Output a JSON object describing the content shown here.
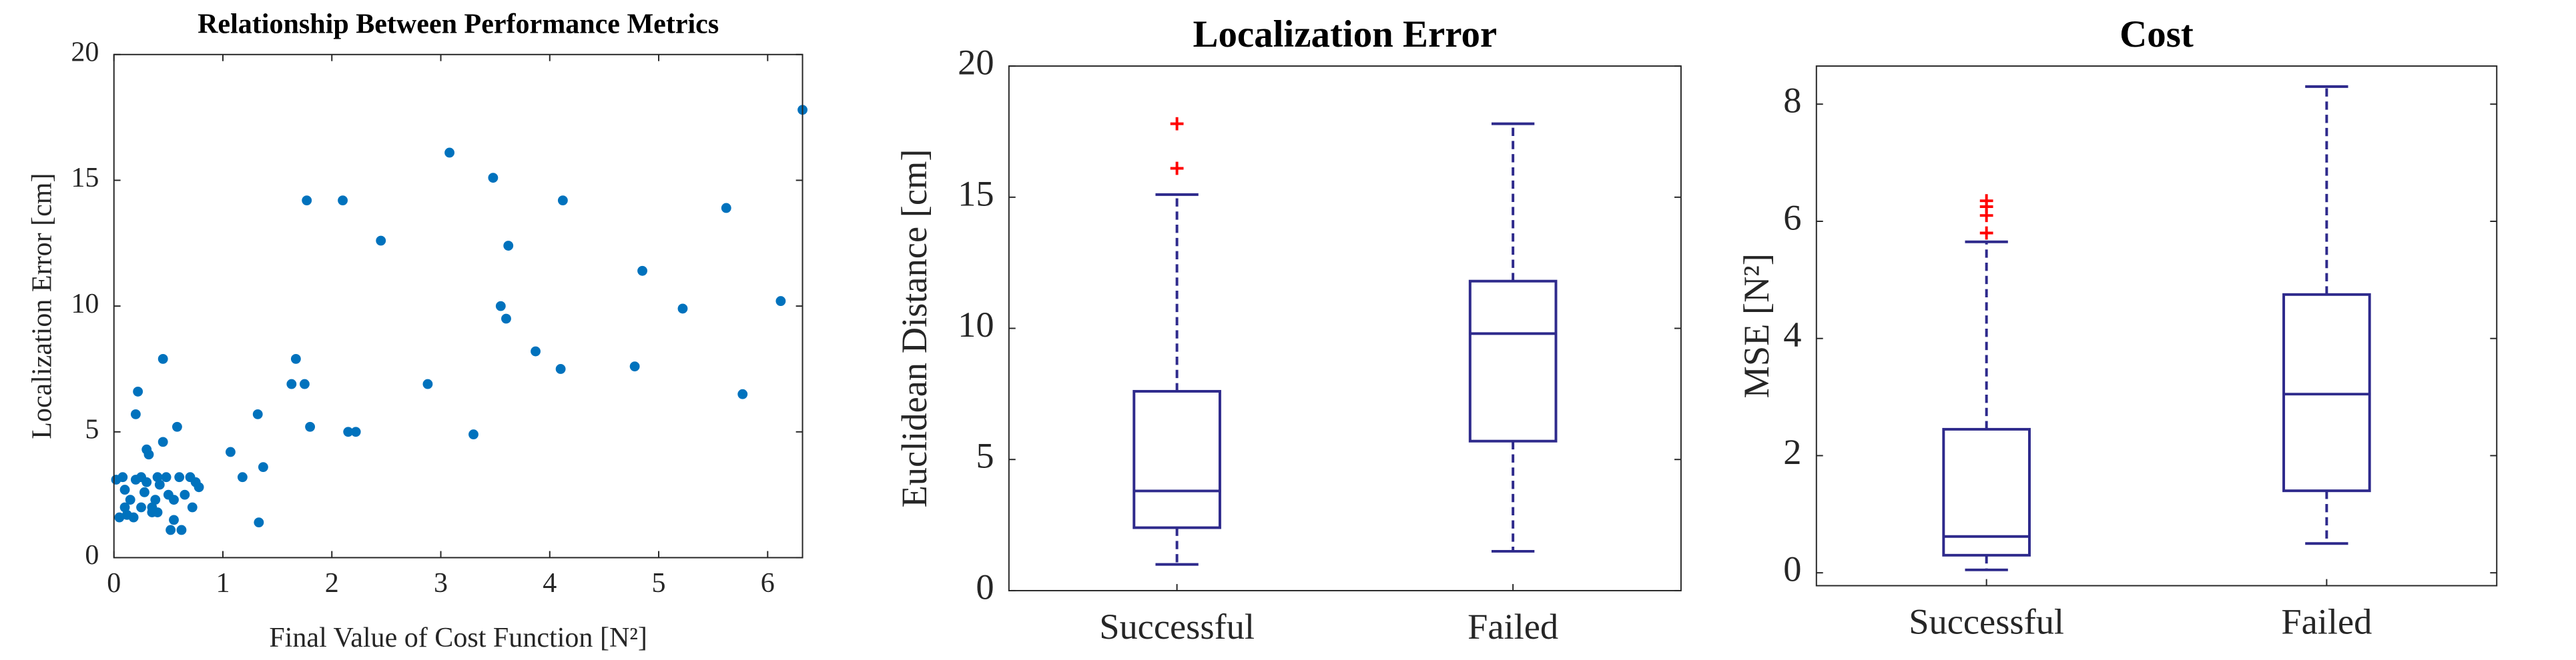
{
  "chart_data": [
    {
      "type": "scatter",
      "title": "Relationship Between Performance Metrics",
      "x_label": "Final Value of Cost Function [N²]",
      "y_label": "Localization Error [cm]",
      "color": "#0072bd",
      "x": [
        0.02,
        0.05,
        0.08,
        0.1,
        0.12,
        0.15,
        0.18,
        0.2,
        0.2,
        0.22,
        0.25,
        0.28,
        0.3,
        0.32,
        0.3,
        0.35,
        0.38,
        0.4,
        0.42,
        0.45,
        0.45,
        0.48,
        0.5,
        0.52,
        0.55,
        0.58,
        0.6,
        0.62,
        0.65,
        0.7,
        0.72,
        0.78,
        0.75,
        0.1,
        0.25,
        0.35,
        0.55,
        0.4,
        1.07,
        1.18,
        1.33,
        1.32,
        1.37,
        1.63,
        1.67,
        1.75,
        1.77,
        1.8,
        2.1,
        2.15,
        2.22,
        2.45,
        2.88,
        3.08,
        3.3,
        3.48,
        3.55,
        3.6,
        3.62,
        3.87,
        4.1,
        4.12,
        4.78,
        4.85,
        5.22,
        5.62,
        5.77,
        6.12,
        6.32
      ],
      "values": [
        3.1,
        1.6,
        3.2,
        2.7,
        1.7,
        2.3,
        1.6,
        3.1,
        5.7,
        6.6,
        2.0,
        2.6,
        4.3,
        4.1,
        3.0,
        1.8,
        2.3,
        1.8,
        2.9,
        4.6,
        7.9,
        3.2,
        2.5,
        1.1,
        2.3,
        5.2,
        3.2,
        1.1,
        2.5,
        3.2,
        2.0,
        2.8,
        3.0,
        2.0,
        3.2,
        2.0,
        1.5,
        3.2,
        4.2,
        3.2,
        1.4,
        5.7,
        3.6,
        6.9,
        7.9,
        6.9,
        14.2,
        5.2,
        14.2,
        5.0,
        5.0,
        12.6,
        6.9,
        16.1,
        4.9,
        15.1,
        10.0,
        9.5,
        12.4,
        8.2,
        7.5,
        14.2,
        7.6,
        11.4,
        9.9,
        13.9,
        6.5,
        10.2,
        17.8
      ],
      "xlim": [
        0,
        6.32
      ],
      "xticks": [
        0,
        1,
        2,
        3,
        4,
        5,
        6
      ],
      "ylim": [
        0,
        20
      ],
      "yticks": [
        0,
        5,
        10,
        15,
        20
      ]
    },
    {
      "type": "box",
      "title": "Localization Error",
      "y_label": "Euclidean Distance [cm]",
      "color": "#2e2a8c",
      "outlier_color": "#ff0000",
      "categories": [
        "Successful",
        "Failed"
      ],
      "boxes": [
        {
          "whisker_low": 1.0,
          "q1": 2.4,
          "median": 3.8,
          "q3": 7.6,
          "whisker_high": 15.1,
          "outliers": [
            16.1,
            17.8
          ]
        },
        {
          "whisker_low": 1.5,
          "q1": 5.7,
          "median": 9.8,
          "q3": 11.8,
          "whisker_high": 17.8,
          "outliers": []
        }
      ],
      "ylim": [
        0,
        20
      ],
      "yticks": [
        0,
        5,
        10,
        15,
        20
      ]
    },
    {
      "type": "box",
      "title": "Cost",
      "y_label": "MSE [N²]",
      "color": "#2e2a8c",
      "outlier_color": "#ff0000",
      "categories": [
        "Successful",
        "Failed"
      ],
      "boxes": [
        {
          "whisker_low": 0.05,
          "q1": 0.3,
          "median": 0.62,
          "q3": 2.45,
          "whisker_high": 5.65,
          "outliers": [
            5.8,
            6.1,
            6.25,
            6.35
          ]
        },
        {
          "whisker_low": 0.5,
          "q1": 1.4,
          "median": 3.05,
          "q3": 4.75,
          "whisker_high": 8.3,
          "outliers": []
        }
      ],
      "ylim": [
        -0.22,
        8.65
      ],
      "yticks": [
        0,
        2,
        4,
        6,
        8
      ]
    }
  ]
}
